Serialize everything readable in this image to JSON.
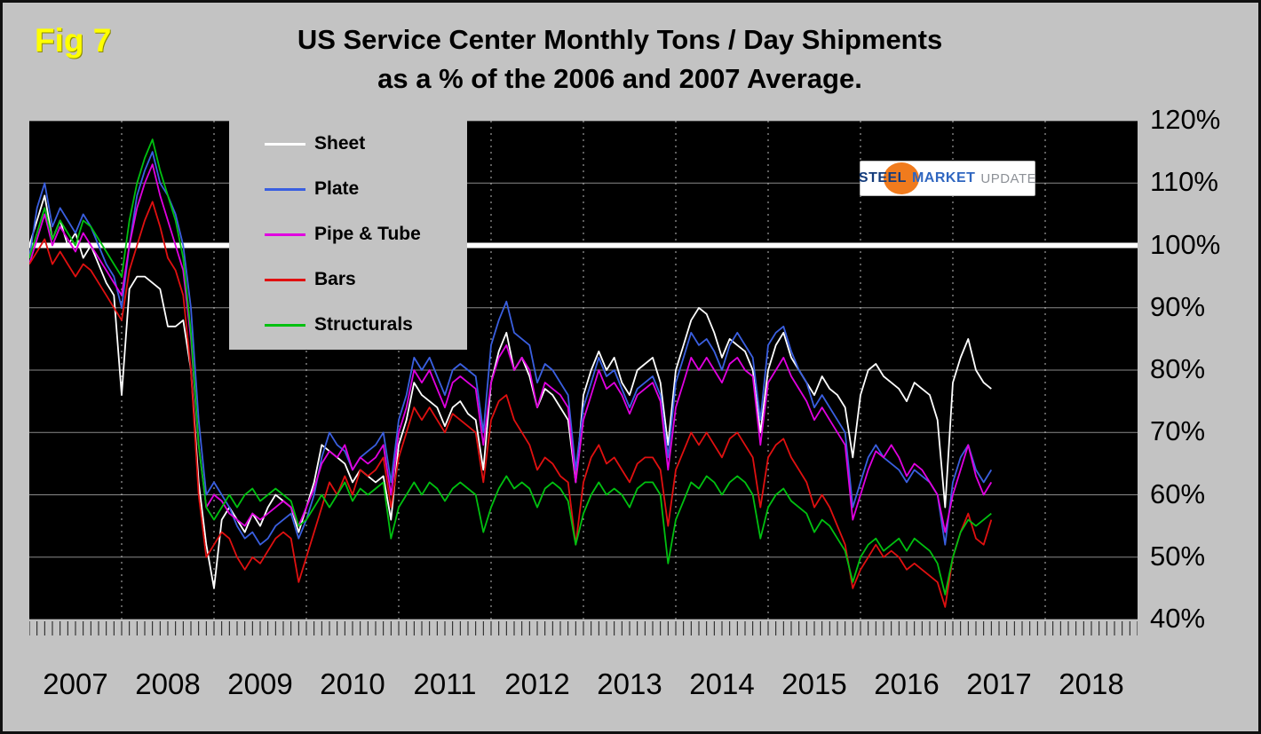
{
  "figure_label": "Fig 7",
  "title": {
    "line1": "US Service Center Monthly Tons / Day Shipments",
    "line2": "as a % of the 2006 and 2007 Average."
  },
  "logo": {
    "word1": "STEEL",
    "word2": "MARKET",
    "word3": "UPDATE"
  },
  "colors": {
    "page_background": "#c3c3c3",
    "plot_background": "#000000",
    "figure_label": "#ffff00",
    "gridline": "#8a8a8a",
    "year_gridline": "#bbbbbb",
    "reference_line": "#ffffff",
    "logo_accent": "#f07b1d"
  },
  "chart_data": {
    "type": "line",
    "title": "US Service Center Monthly Tons / Day Shipments as a % of the 2006 and 2007 Average.",
    "x_unit": "month",
    "x_start": "2007-01",
    "years": [
      "2007",
      "2008",
      "2009",
      "2010",
      "2011",
      "2012",
      "2013",
      "2014",
      "2015",
      "2016",
      "2017",
      "2018"
    ],
    "ylim": [
      40,
      120
    ],
    "y_tick_values": [
      120,
      110,
      100,
      90,
      80,
      70,
      60,
      50,
      40
    ],
    "y_tick_labels": [
      "120%",
      "110%",
      "100%",
      "90%",
      "80%",
      "70%",
      "60%",
      "50%",
      "40%"
    ],
    "grid": "horizontal-solid, yearly-dotted-vertical",
    "legend_position": "top-left",
    "reference_line": {
      "value": 100,
      "color": "#ffffff",
      "width": 6
    },
    "series": [
      {
        "name": "Sheet",
        "color": "#ffffff",
        "values": [
          100,
          104,
          108,
          101,
          104,
          100,
          102,
          98,
          100,
          97,
          94,
          92,
          76,
          93,
          95,
          95,
          94,
          93,
          87,
          87,
          88,
          80,
          62,
          52,
          45,
          56,
          58,
          56,
          54,
          57,
          55,
          58,
          60,
          59,
          58,
          54,
          58,
          62,
          68,
          67,
          66,
          65,
          62,
          64,
          63,
          62,
          63,
          56,
          68,
          72,
          78,
          76,
          75,
          74,
          71,
          74,
          75,
          73,
          72,
          64,
          78,
          83,
          86,
          80,
          82,
          79,
          74,
          77,
          76,
          74,
          72,
          62,
          76,
          80,
          83,
          80,
          82,
          78,
          76,
          80,
          81,
          82,
          78,
          68,
          80,
          84,
          88,
          90,
          89,
          86,
          82,
          85,
          84,
          83,
          80,
          70,
          80,
          84,
          86,
          82,
          80,
          78,
          76,
          79,
          77,
          76,
          74,
          66,
          76,
          80,
          81,
          79,
          78,
          77,
          75,
          78,
          77,
          76,
          72,
          58,
          78,
          82,
          85,
          80,
          78,
          77
        ]
      },
      {
        "name": "Plate",
        "color": "#3a5fe0",
        "values": [
          98,
          106,
          110,
          103,
          106,
          104,
          102,
          105,
          103,
          100,
          97,
          95,
          90,
          100,
          108,
          112,
          115,
          110,
          108,
          105,
          100,
          90,
          72,
          60,
          62,
          60,
          58,
          55,
          53,
          54,
          52,
          53,
          55,
          56,
          57,
          53,
          56,
          60,
          66,
          70,
          68,
          67,
          64,
          66,
          67,
          68,
          70,
          62,
          72,
          76,
          82,
          80,
          82,
          79,
          76,
          80,
          81,
          80,
          79,
          70,
          84,
          88,
          91,
          86,
          85,
          84,
          78,
          81,
          80,
          78,
          76,
          64,
          74,
          78,
          82,
          79,
          80,
          77,
          74,
          77,
          78,
          79,
          76,
          66,
          78,
          82,
          86,
          84,
          85,
          83,
          80,
          84,
          86,
          84,
          82,
          72,
          84,
          86,
          87,
          83,
          80,
          78,
          74,
          76,
          74,
          72,
          70,
          58,
          62,
          66,
          68,
          66,
          65,
          64,
          62,
          64,
          63,
          62,
          60,
          52,
          62,
          66,
          68,
          64,
          62,
          64
        ]
      },
      {
        "name": "Pipe & Tube",
        "color": "#e000e0",
        "values": [
          97,
          101,
          105,
          100,
          103,
          101,
          99,
          102,
          100,
          98,
          96,
          94,
          92,
          100,
          106,
          110,
          113,
          108,
          104,
          100,
          96,
          85,
          68,
          58,
          60,
          59,
          57,
          56,
          55,
          57,
          56,
          57,
          58,
          59,
          58,
          55,
          58,
          61,
          65,
          67,
          66,
          68,
          64,
          66,
          65,
          66,
          68,
          60,
          70,
          74,
          80,
          78,
          80,
          77,
          74,
          78,
          79,
          78,
          77,
          68,
          78,
          82,
          84,
          80,
          82,
          80,
          74,
          78,
          77,
          76,
          74,
          62,
          72,
          76,
          80,
          77,
          78,
          76,
          73,
          76,
          77,
          78,
          75,
          64,
          74,
          78,
          82,
          80,
          82,
          80,
          78,
          81,
          82,
          80,
          79,
          68,
          78,
          80,
          82,
          79,
          77,
          75,
          72,
          74,
          72,
          70,
          68,
          56,
          60,
          64,
          67,
          66,
          68,
          66,
          63,
          65,
          64,
          62,
          60,
          54,
          60,
          64,
          68,
          63,
          60,
          62
        ]
      },
      {
        "name": "Bars",
        "color": "#e01010",
        "values": [
          97,
          99,
          101,
          97,
          99,
          97,
          95,
          97,
          96,
          94,
          92,
          90,
          88,
          96,
          100,
          104,
          107,
          103,
          98,
          96,
          92,
          80,
          60,
          50,
          52,
          54,
          53,
          50,
          48,
          50,
          49,
          51,
          53,
          54,
          53,
          46,
          50,
          54,
          58,
          62,
          60,
          63,
          60,
          64,
          63,
          64,
          66,
          58,
          66,
          70,
          74,
          72,
          74,
          72,
          70,
          73,
          72,
          71,
          70,
          62,
          72,
          75,
          76,
          72,
          70,
          68,
          64,
          66,
          65,
          63,
          62,
          52,
          62,
          66,
          68,
          65,
          66,
          64,
          62,
          65,
          66,
          66,
          64,
          55,
          64,
          67,
          70,
          68,
          70,
          68,
          66,
          69,
          70,
          68,
          66,
          58,
          66,
          68,
          69,
          66,
          64,
          62,
          58,
          60,
          58,
          55,
          52,
          45,
          48,
          50,
          52,
          50,
          51,
          50,
          48,
          49,
          48,
          47,
          46,
          42,
          50,
          54,
          57,
          53,
          52,
          56
        ]
      },
      {
        "name": "Structurals",
        "color": "#00c010",
        "values": [
          98,
          102,
          106,
          101,
          104,
          102,
          100,
          104,
          103,
          101,
          99,
          97,
          95,
          104,
          110,
          114,
          117,
          112,
          108,
          104,
          98,
          86,
          68,
          58,
          56,
          58,
          60,
          58,
          60,
          61,
          59,
          60,
          61,
          60,
          59,
          55,
          56,
          58,
          60,
          58,
          60,
          62,
          59,
          61,
          60,
          61,
          62,
          53,
          58,
          60,
          62,
          60,
          62,
          61,
          59,
          61,
          62,
          61,
          60,
          54,
          58,
          61,
          63,
          61,
          62,
          61,
          58,
          61,
          62,
          61,
          59,
          52,
          57,
          60,
          62,
          60,
          61,
          60,
          58,
          61,
          62,
          62,
          60,
          49,
          56,
          59,
          62,
          61,
          63,
          62,
          60,
          62,
          63,
          62,
          60,
          53,
          58,
          60,
          61,
          59,
          58,
          57,
          54,
          56,
          55,
          53,
          51,
          46,
          50,
          52,
          53,
          51,
          52,
          53,
          51,
          53,
          52,
          51,
          49,
          44,
          50,
          54,
          56,
          55,
          56,
          57
        ]
      }
    ]
  }
}
